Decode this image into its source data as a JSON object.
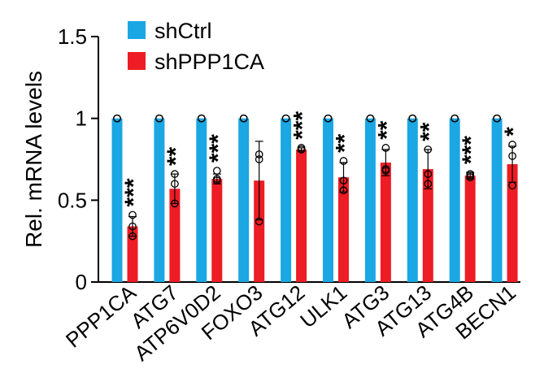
{
  "chart_data": {
    "type": "bar",
    "ylabel": "Rel. mRNA levels",
    "ylim": [
      0,
      1.5
    ],
    "yticks": [
      0,
      0.5,
      1,
      1.5
    ],
    "ytick_labels": [
      "0",
      "0.5",
      "1",
      "1.5"
    ],
    "categories": [
      "PPP1CA",
      "ATG7",
      "ATP6V0D2",
      "FOXO3",
      "ATG12",
      "ULK1",
      "ATG3",
      "ATG13",
      "ATG4B",
      "BECN1"
    ],
    "series": [
      {
        "name": "shCtrl",
        "color": "#1aa7e4",
        "values": [
          1,
          1,
          1,
          1,
          1,
          1,
          1,
          1,
          1,
          1
        ],
        "errors": [
          0,
          0,
          0,
          0,
          0,
          0,
          0,
          0,
          0,
          0
        ],
        "points": [
          [
            1,
            1,
            1
          ],
          [
            1,
            1,
            1
          ],
          [
            1,
            1,
            1
          ],
          [
            1,
            1,
            1
          ],
          [
            1,
            1,
            1
          ],
          [
            1,
            1,
            1
          ],
          [
            1,
            1,
            1
          ],
          [
            1,
            1,
            1
          ],
          [
            1,
            1,
            1
          ],
          [
            1,
            1,
            1
          ]
        ]
      },
      {
        "name": "shPPP1CA",
        "color": "#ee1c24",
        "values": [
          0.34,
          0.57,
          0.63,
          0.62,
          0.81,
          0.64,
          0.73,
          0.69,
          0.65,
          0.72
        ],
        "errors": [
          0.06,
          0.09,
          0.03,
          0.24,
          0.01,
          0.09,
          0.08,
          0.12,
          0.02,
          0.11
        ],
        "points": [
          [
            0.41,
            0.34,
            0.28
          ],
          [
            0.66,
            0.6,
            0.48
          ],
          [
            0.68,
            0.63,
            0.62
          ],
          [
            0.78,
            0.75,
            0.37
          ],
          [
            0.82,
            0.81,
            0.81
          ],
          [
            0.74,
            0.62,
            0.56
          ],
          [
            0.82,
            0.69,
            0.68
          ],
          [
            0.81,
            0.66,
            0.6
          ],
          [
            0.66,
            0.65,
            0.64
          ],
          [
            0.84,
            0.77,
            0.59
          ]
        ]
      }
    ],
    "significance": [
      "***",
      "**",
      "***",
      "",
      "***",
      "**",
      "**",
      "**",
      "***",
      "*"
    ],
    "legend_placement": "top-left",
    "grid": false
  }
}
